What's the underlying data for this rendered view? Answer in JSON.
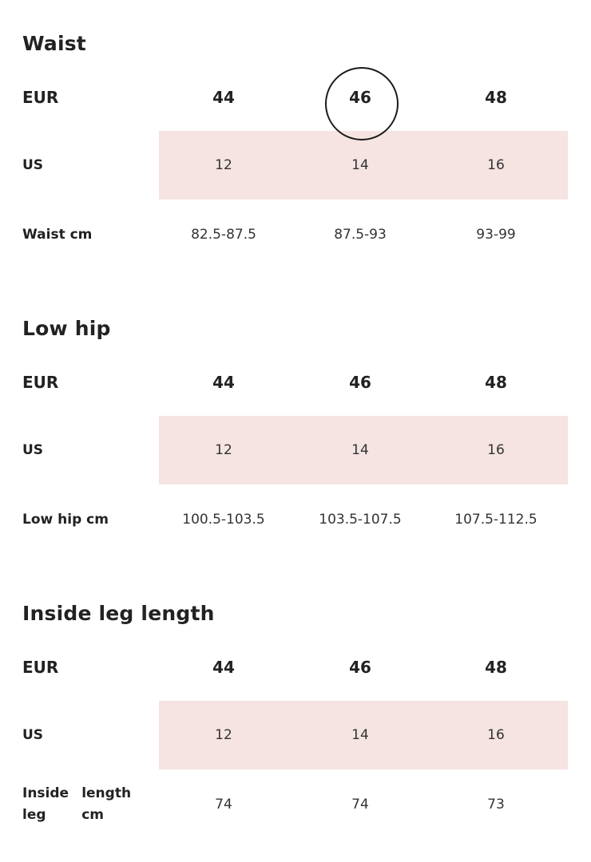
{
  "sections": [
    {
      "title": "Waist",
      "eur": {
        "label": "EUR",
        "values": [
          "44",
          "46",
          "48"
        ]
      },
      "us": {
        "label": "US",
        "values": [
          "12",
          "14",
          "16"
        ]
      },
      "measure": {
        "label": "Waist cm",
        "values": [
          "82.5-87.5",
          "87.5-93",
          "93-99"
        ]
      }
    },
    {
      "title": "Low hip",
      "eur": {
        "label": "EUR",
        "values": [
          "44",
          "46",
          "48"
        ]
      },
      "us": {
        "label": "US",
        "values": [
          "12",
          "14",
          "16"
        ]
      },
      "measure": {
        "label": "Low hip cm",
        "values": [
          "100.5-103.5",
          "103.5-107.5",
          "107.5-112.5"
        ]
      }
    },
    {
      "title": "Inside leg length",
      "eur": {
        "label": "EUR",
        "values": [
          "44",
          "46",
          "48"
        ]
      },
      "us": {
        "label": "US",
        "values": [
          "12",
          "14",
          "16"
        ]
      },
      "measure": {
        "label": "Inside leg length cm",
        "label_lines": [
          "Inside leg",
          "length cm"
        ],
        "values": [
          "74",
          "74",
          "73"
        ]
      }
    }
  ],
  "selected_size": "46",
  "colors": {
    "highlight_row": "#f5e4e2",
    "text": "#222222"
  }
}
